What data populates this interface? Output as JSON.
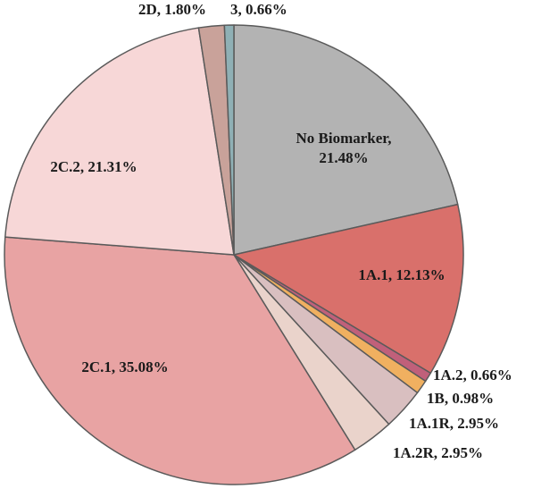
{
  "chart_data": {
    "type": "pie",
    "title": "",
    "start": "12 o'clock",
    "direction": "clockwise",
    "slices": [
      {
        "label": "No Biomarker",
        "value": 21.48,
        "display": "No Biomarker,",
        "display2": "21.48%",
        "color": "#b3b3b3"
      },
      {
        "label": "1A.1",
        "value": 12.13,
        "display": "1A.1, 12.13%",
        "color": "#d9706b"
      },
      {
        "label": "1A.2",
        "value": 0.66,
        "display": "1A.2, 0.66%",
        "color": "#c0607a"
      },
      {
        "label": "1B",
        "value": 0.98,
        "display": "1B, 0.98%",
        "color": "#f0b060"
      },
      {
        "label": "1A.1R",
        "value": 2.95,
        "display": "1A.1R, 2.95%",
        "color": "#d9bfc0"
      },
      {
        "label": "1A.2R",
        "value": 2.95,
        "display": "1A.2R, 2.95%",
        "color": "#ead3cb"
      },
      {
        "label": "2C.1",
        "value": 35.08,
        "display": "2C.1, 35.08%",
        "color": "#e8a3a3"
      },
      {
        "label": "2C.2",
        "value": 21.31,
        "display": "2C.2, 21.31%",
        "color": "#f7d7d7"
      },
      {
        "label": "2D",
        "value": 1.8,
        "display": "2D, 1.80%",
        "color": "#c9a29a"
      },
      {
        "label": "3",
        "value": 0.66,
        "display": "3, 0.66%",
        "color": "#8fb0b5"
      }
    ]
  }
}
